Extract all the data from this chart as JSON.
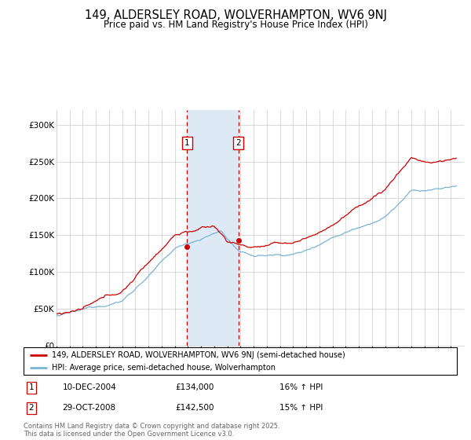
{
  "title": "149, ALDERSLEY ROAD, WOLVERHAMPTON, WV6 9NJ",
  "subtitle": "Price paid vs. HM Land Registry's House Price Index (HPI)",
  "legend_line1": "149, ALDERSLEY ROAD, WOLVERHAMPTON, WV6 9NJ (semi-detached house)",
  "legend_line2": "HPI: Average price, semi-detached house, Wolverhampton",
  "transaction1_date": "10-DEC-2004",
  "transaction1_price": "£134,000",
  "transaction1_hpi": "16% ↑ HPI",
  "transaction1_year": 2004.94,
  "transaction1_val": 134000,
  "transaction2_date": "29-OCT-2008",
  "transaction2_price": "£142,500",
  "transaction2_hpi": "15% ↑ HPI",
  "transaction2_year": 2008.83,
  "transaction2_val": 142500,
  "hpi_color": "#7ab3d4",
  "price_color": "#cc0000",
  "shading_color": "#ddeaf5",
  "vline_color": "#cc0000",
  "footer": "Contains HM Land Registry data © Crown copyright and database right 2025.\nThis data is licensed under the Open Government Licence v3.0.",
  "ylim": [
    0,
    320000
  ],
  "yticks": [
    0,
    50000,
    100000,
    150000,
    200000,
    250000,
    300000
  ],
  "ytick_labels": [
    "£0",
    "£50K",
    "£100K",
    "£150K",
    "£200K",
    "£250K",
    "£300K"
  ],
  "xmin": 1995,
  "xmax": 2026
}
